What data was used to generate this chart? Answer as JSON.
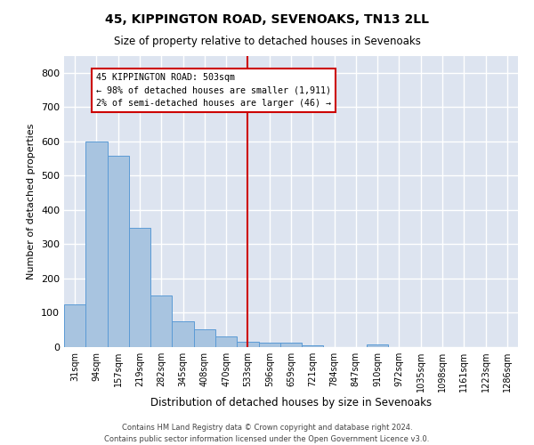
{
  "title": "45, KIPPINGTON ROAD, SEVENOAKS, TN13 2LL",
  "subtitle": "Size of property relative to detached houses in Sevenoaks",
  "xlabel": "Distribution of detached houses by size in Sevenoaks",
  "ylabel": "Number of detached properties",
  "categories": [
    "31sqm",
    "94sqm",
    "157sqm",
    "219sqm",
    "282sqm",
    "345sqm",
    "408sqm",
    "470sqm",
    "533sqm",
    "596sqm",
    "659sqm",
    "721sqm",
    "784sqm",
    "847sqm",
    "910sqm",
    "972sqm",
    "1035sqm",
    "1098sqm",
    "1161sqm",
    "1223sqm",
    "1286sqm"
  ],
  "values": [
    125,
    600,
    557,
    348,
    150,
    75,
    52,
    30,
    15,
    12,
    12,
    6,
    0,
    0,
    8,
    0,
    0,
    0,
    0,
    0,
    0
  ],
  "bar_color": "#a8c4e0",
  "bar_edge_color": "#5b9bd5",
  "background_color": "#dde4f0",
  "grid_color": "#ffffff",
  "vline_x": 8,
  "vline_color": "#cc0000",
  "annotation_text": "45 KIPPINGTON ROAD: 503sqm\n← 98% of detached houses are smaller (1,911)\n2% of semi-detached houses are larger (46) →",
  "annotation_box_color": "#cc0000",
  "ylim": [
    0,
    850
  ],
  "yticks": [
    0,
    100,
    200,
    300,
    400,
    500,
    600,
    700,
    800
  ],
  "footer_line1": "Contains HM Land Registry data © Crown copyright and database right 2024.",
  "footer_line2": "Contains public sector information licensed under the Open Government Licence v3.0."
}
